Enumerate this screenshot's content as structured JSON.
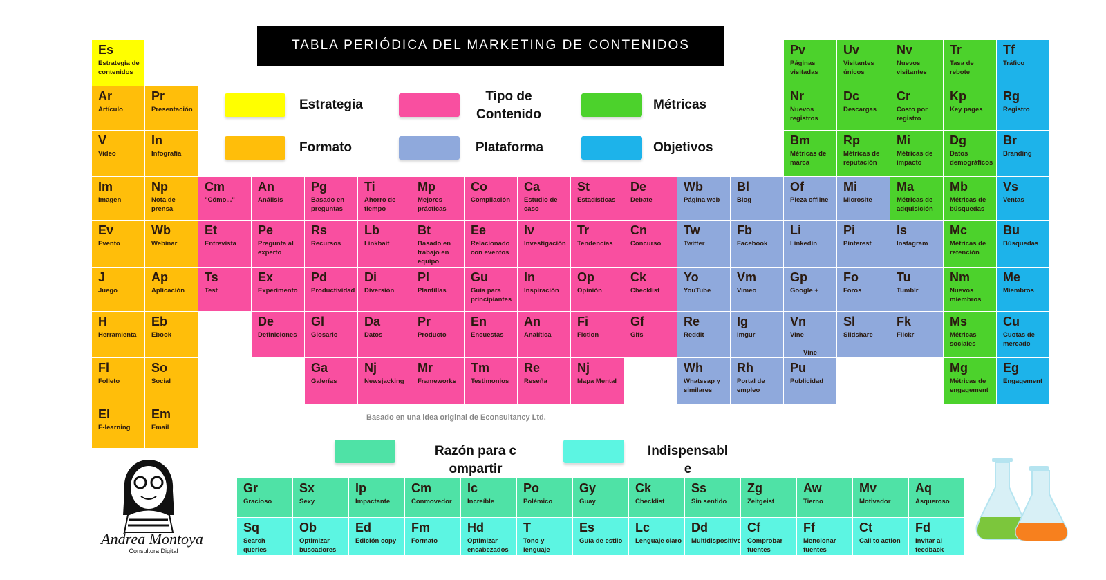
{
  "header": {
    "title": "TABLA PERIÓDICA DEL MARKETING DE CONTENIDOS"
  },
  "legend": [
    {
      "label": "Estrategia",
      "color": "#ffff00"
    },
    {
      "label": "Tipo de Contenido",
      "color": "#f94fa0"
    },
    {
      "label": "Métricas",
      "color": "#4cd22c"
    },
    {
      "label": "Formato",
      "color": "#ffbe0a"
    },
    {
      "label": "Plataforma",
      "color": "#8fa9dc"
    },
    {
      "label": "Objetivos",
      "color": "#1db3ea"
    }
  ],
  "table": {
    "rows": [
      [
        {
          "symbol": "Es",
          "name": "Estrategia de contenidos",
          "group": "Estrategia"
        },
        null,
        null,
        null,
        null,
        null,
        null,
        null,
        null,
        null,
        null,
        null,
        null,
        {
          "symbol": "Pv",
          "name": "Páginas visitadas",
          "group": "Métricas"
        },
        {
          "symbol": "Uv",
          "name": "Visitantes únicos",
          "group": "Métricas"
        },
        {
          "symbol": "Nv",
          "name": "Nuevos visitantes",
          "group": "Métricas"
        },
        {
          "symbol": "Tr",
          "name": "Tasa de rebote",
          "group": "Métricas"
        },
        {
          "symbol": "Tf",
          "name": "Tráfico",
          "group": "Objetivos"
        }
      ],
      [
        {
          "symbol": "Ar",
          "name": "Artículo",
          "group": "Formato"
        },
        {
          "symbol": "Pr",
          "name": "Presentación",
          "group": "Formato"
        },
        null,
        null,
        null,
        null,
        null,
        null,
        null,
        null,
        null,
        null,
        null,
        {
          "symbol": "Nr",
          "name": "Nuevos registros",
          "group": "Métricas"
        },
        {
          "symbol": "Dc",
          "name": "Descargas",
          "group": "Métricas"
        },
        {
          "symbol": "Cr",
          "name": "Costo por registro",
          "group": "Métricas"
        },
        {
          "symbol": "Kp",
          "name": "Key pages",
          "group": "Métricas"
        },
        {
          "symbol": "Rg",
          "name": "Registro",
          "group": "Objetivos"
        }
      ],
      [
        {
          "symbol": "V",
          "name": "Video",
          "group": "Formato"
        },
        {
          "symbol": "In",
          "name": "Infografía",
          "group": "Formato"
        },
        null,
        null,
        null,
        null,
        null,
        null,
        null,
        null,
        null,
        null,
        null,
        {
          "symbol": "Bm",
          "name": "Métricas de marca",
          "group": "Métricas"
        },
        {
          "symbol": "Rp",
          "name": "Métricas de reputación",
          "group": "Métricas"
        },
        {
          "symbol": "Mi",
          "name": "Métricas de impacto",
          "group": "Métricas"
        },
        {
          "symbol": "Dg",
          "name": "Datos demográficos",
          "group": "Métricas"
        },
        {
          "symbol": "Br",
          "name": "Branding",
          "group": "Objetivos"
        }
      ],
      [
        {
          "symbol": "Im",
          "name": "Imagen",
          "group": "Formato"
        },
        {
          "symbol": "Np",
          "name": "Nota de prensa",
          "group": "Formato"
        },
        {
          "symbol": "Cm",
          "name": "\"Cómo...\"",
          "group": "Tipo de Contenido"
        },
        {
          "symbol": "An",
          "name": "Análisis",
          "group": "Tipo de Contenido"
        },
        {
          "symbol": "Pg",
          "name": "Basado en preguntas",
          "group": "Tipo de Contenido"
        },
        {
          "symbol": "Ti",
          "name": "Ahorro de tiempo",
          "group": "Tipo de Contenido"
        },
        {
          "symbol": "Mp",
          "name": "Mejores prácticas",
          "group": "Tipo de Contenido"
        },
        {
          "symbol": "Co",
          "name": "Compilación",
          "group": "Tipo de Contenido"
        },
        {
          "symbol": "Ca",
          "name": "Estudio de caso",
          "group": "Tipo de Contenido"
        },
        {
          "symbol": "St",
          "name": "Estadísticas",
          "group": "Tipo de Contenido"
        },
        {
          "symbol": "De",
          "name": "Debate",
          "group": "Tipo de Contenido"
        },
        {
          "symbol": "Wb",
          "name": "Página web",
          "group": "Plataforma"
        },
        {
          "symbol": "Bl",
          "name": "Blog",
          "group": "Plataforma"
        },
        {
          "symbol": "Of",
          "name": "Pieza offline",
          "group": "Plataforma"
        },
        {
          "symbol": "Mi",
          "name": "Microsite",
          "group": "Plataforma"
        },
        {
          "symbol": "Ma",
          "name": "Métricas de adquisición",
          "group": "Métricas"
        },
        {
          "symbol": "Mb",
          "name": "Métricas de búsquedas",
          "group": "Métricas"
        },
        {
          "symbol": "Vs",
          "name": "Ventas",
          "group": "Objetivos"
        }
      ],
      [
        {
          "symbol": "Ev",
          "name": "Evento",
          "group": "Formato"
        },
        {
          "symbol": "Wb",
          "name": "Webinar",
          "group": "Formato"
        },
        {
          "symbol": "Et",
          "name": "Entrevista",
          "group": "Tipo de Contenido"
        },
        {
          "symbol": "Pe",
          "name": "Pregunta al experto",
          "group": "Tipo de Contenido"
        },
        {
          "symbol": "Rs",
          "name": "Recursos",
          "group": "Tipo de Contenido"
        },
        {
          "symbol": "Lb",
          "name": "Linkbait",
          "group": "Tipo de Contenido"
        },
        {
          "symbol": "Bt",
          "name": "Basado en trabajo en equipo",
          "group": "Tipo de Contenido"
        },
        {
          "symbol": "Ee",
          "name": "Relacionado con eventos",
          "group": "Tipo de Contenido"
        },
        {
          "symbol": "Iv",
          "name": "Investigación",
          "group": "Tipo de Contenido"
        },
        {
          "symbol": "Tr",
          "name": "Tendencias",
          "group": "Tipo de Contenido"
        },
        {
          "symbol": "Cn",
          "name": "Concurso",
          "group": "Tipo de Contenido"
        },
        {
          "symbol": "Tw",
          "name": "Twitter",
          "group": "Plataforma"
        },
        {
          "symbol": "Fb",
          "name": "Facebook",
          "group": "Plataforma"
        },
        {
          "symbol": "Li",
          "name": "Linkedin",
          "group": "Plataforma"
        },
        {
          "symbol": "Pi",
          "name": "Pinterest",
          "group": "Plataforma"
        },
        {
          "symbol": "Is",
          "name": "Instagram",
          "group": "Plataforma"
        },
        {
          "symbol": "Mc",
          "name": "Métricas de retención",
          "group": "Métricas"
        },
        {
          "symbol": "Bu",
          "name": "Búsquedas",
          "group": "Objetivos"
        }
      ],
      [
        {
          "symbol": "J",
          "name": "Juego",
          "group": "Formato"
        },
        {
          "symbol": "Ap",
          "name": "Aplicación",
          "group": "Formato"
        },
        {
          "symbol": "Ts",
          "name": "Test",
          "group": "Tipo de Contenido"
        },
        {
          "symbol": "Ex",
          "name": "Experimento",
          "group": "Tipo de Contenido"
        },
        {
          "symbol": "Pd",
          "name": "Productividad",
          "group": "Tipo de Contenido"
        },
        {
          "symbol": "Di",
          "name": "Diversión",
          "group": "Tipo de Contenido"
        },
        {
          "symbol": "Pl",
          "name": "Plantillas",
          "group": "Tipo de Contenido"
        },
        {
          "symbol": "Gu",
          "name": "Guía para principiantes",
          "group": "Tipo de Contenido"
        },
        {
          "symbol": "In",
          "name": "Inspiración",
          "group": "Tipo de Contenido"
        },
        {
          "symbol": "Op",
          "name": "Opinión",
          "group": "Tipo de Contenido"
        },
        {
          "symbol": "Ck",
          "name": "Checklist",
          "group": "Tipo de Contenido"
        },
        {
          "symbol": "Yo",
          "name": "YouTube",
          "group": "Plataforma"
        },
        {
          "symbol": "Vm",
          "name": "Vimeo",
          "group": "Plataforma"
        },
        {
          "symbol": "Gp",
          "name": "Google +",
          "group": "Plataforma"
        },
        {
          "symbol": "Fo",
          "name": "Foros",
          "group": "Plataforma"
        },
        {
          "symbol": "Tu",
          "name": "Tumblr",
          "group": "Plataforma"
        },
        {
          "symbol": "Nm",
          "name": "Nuevos miembros",
          "group": "Métricas"
        },
        {
          "symbol": "Me",
          "name": "Miembros",
          "group": "Objetivos"
        }
      ],
      [
        {
          "symbol": "H",
          "name": "Herramienta",
          "group": "Formato"
        },
        {
          "symbol": "Eb",
          "name": "Ebook",
          "group": "Formato"
        },
        null,
        {
          "symbol": "De",
          "name": "Definiciones",
          "group": "Tipo de Contenido"
        },
        {
          "symbol": "Gl",
          "name": "Glosario",
          "group": "Tipo de Contenido"
        },
        {
          "symbol": "Da",
          "name": "Datos",
          "group": "Tipo de Contenido"
        },
        {
          "symbol": "Pr",
          "name": "Producto",
          "group": "Tipo de Contenido"
        },
        {
          "symbol": "En",
          "name": "Encuestas",
          "group": "Tipo de Contenido"
        },
        {
          "symbol": "An",
          "name": "Analítica",
          "group": "Tipo de Contenido"
        },
        {
          "symbol": "Fi",
          "name": "Fiction",
          "group": "Tipo de Contenido"
        },
        {
          "symbol": "Gf",
          "name": "Gifs",
          "group": "Tipo de Contenido"
        },
        {
          "symbol": "Re",
          "name": "Reddit",
          "group": "Plataforma"
        },
        {
          "symbol": "Ig",
          "name": "Imgur",
          "group": "Plataforma"
        },
        {
          "symbol": "Vn",
          "name": "Vine",
          "group": "Plataforma",
          "footnote": "Vine"
        },
        {
          "symbol": "Sl",
          "name": "Slidshare",
          "group": "Plataforma"
        },
        {
          "symbol": "Fk",
          "name": "Flickr",
          "group": "Plataforma"
        },
        {
          "symbol": "Ms",
          "name": "Métricas sociales",
          "group": "Métricas"
        },
        {
          "symbol": "Cu",
          "name": "Cuotas de mercado",
          "group": "Objetivos"
        }
      ],
      [
        {
          "symbol": "Fl",
          "name": "Folleto",
          "group": "Formato"
        },
        {
          "symbol": "So",
          "name": "Social",
          "group": "Formato"
        },
        null,
        null,
        {
          "symbol": "Ga",
          "name": "Galerías",
          "group": "Tipo de Contenido"
        },
        {
          "symbol": "Nj",
          "name": "Newsjacking",
          "group": "Tipo de Contenido"
        },
        {
          "symbol": "Mr",
          "name": "Frameworks",
          "group": "Tipo de Contenido"
        },
        {
          "symbol": "Tm",
          "name": "Testimonios",
          "group": "Tipo de Contenido"
        },
        {
          "symbol": "Re",
          "name": "Reseña",
          "group": "Tipo de Contenido"
        },
        {
          "symbol": "Nj",
          "name": "Mapa Mental",
          "group": "Tipo de Contenido"
        },
        null,
        {
          "symbol": "Wh",
          "name": "Whatssap y similares",
          "group": "Plataforma"
        },
        {
          "symbol": "Rh",
          "name": "Portal de empleo",
          "group": "Plataforma"
        },
        {
          "symbol": "Pu",
          "name": "Publicidad",
          "group": "Plataforma"
        },
        null,
        null,
        {
          "symbol": "Mg",
          "name": "Métricas de engagement",
          "group": "Métricas"
        },
        {
          "symbol": "Eg",
          "name": "Engagement",
          "group": "Objetivos"
        }
      ],
      [
        {
          "symbol": "El",
          "name": "E-learning",
          "group": "Formato"
        },
        {
          "symbol": "Em",
          "name": "Email",
          "group": "Formato"
        }
      ]
    ]
  },
  "credit": "Basado en una idea original de Econsultancy Ltd.",
  "bottom_legend": [
    {
      "label": "Razón para compartir",
      "color": "#4fe2a6"
    },
    {
      "label": "Indispensable",
      "color": "#5cf5e2"
    }
  ],
  "bottom_table": {
    "rows": [
      [
        {
          "symbol": "Gr",
          "name": "Gracioso",
          "group": "Razón para compartir"
        },
        {
          "symbol": "Sx",
          "name": "Sexy",
          "group": "Razón para compartir"
        },
        {
          "symbol": "Ip",
          "name": "Impactante",
          "group": "Razón para compartir"
        },
        {
          "symbol": "Cm",
          "name": "Conmovedor",
          "group": "Razón para compartir"
        },
        {
          "symbol": "Ic",
          "name": "Increíble",
          "group": "Razón para compartir"
        },
        {
          "symbol": "Po",
          "name": "Polémico",
          "group": "Razón para compartir"
        },
        {
          "symbol": "Gy",
          "name": "Guay",
          "group": "Razón para compartir"
        },
        {
          "symbol": "Ck",
          "name": "Checklist",
          "group": "Razón para compartir"
        },
        {
          "symbol": "Ss",
          "name": "Sin sentido",
          "group": "Razón para compartir"
        },
        {
          "symbol": "Zg",
          "name": "Zeitgeist",
          "group": "Razón para compartir"
        },
        {
          "symbol": "Aw",
          "name": "Tierno",
          "group": "Razón para compartir"
        },
        {
          "symbol": "Mv",
          "name": "Motivador",
          "group": "Razón para compartir"
        },
        {
          "symbol": "Aq",
          "name": "Asqueroso",
          "group": "Razón para compartir"
        }
      ],
      [
        {
          "symbol": "Sq",
          "name": "Search queries",
          "group": "Indispensable"
        },
        {
          "symbol": "Ob",
          "name": "Optimizar buscadores",
          "group": "Indispensable"
        },
        {
          "symbol": "Ed",
          "name": "Edición copy",
          "group": "Indispensable"
        },
        {
          "symbol": "Fm",
          "name": "Formato",
          "group": "Indispensable"
        },
        {
          "symbol": "Hd",
          "name": "Optimizar encabezados",
          "group": "Indispensable"
        },
        {
          "symbol": "T",
          "name": "Tono y lenguaje",
          "group": "Indispensable"
        },
        {
          "symbol": "Es",
          "name": "Guía de estilo",
          "group": "Indispensable"
        },
        {
          "symbol": "Lc",
          "name": "Lenguaje claro",
          "group": "Indispensable"
        },
        {
          "symbol": "Dd",
          "name": "Multidispositivo",
          "group": "Indispensable"
        },
        {
          "symbol": "Cf",
          "name": "Comprobar fuentes",
          "group": "Indispensable"
        },
        {
          "symbol": "Ff",
          "name": "Mencionar fuentes",
          "group": "Indispensable"
        },
        {
          "symbol": "Ct",
          "name": "Call to action",
          "group": "Indispensable"
        },
        {
          "symbol": "Fd",
          "name": "Invitar al feedback",
          "group": "Indispensable"
        }
      ]
    ]
  },
  "signature": {
    "name": "Andrea Montoya",
    "role": "Consultora Digital"
  }
}
